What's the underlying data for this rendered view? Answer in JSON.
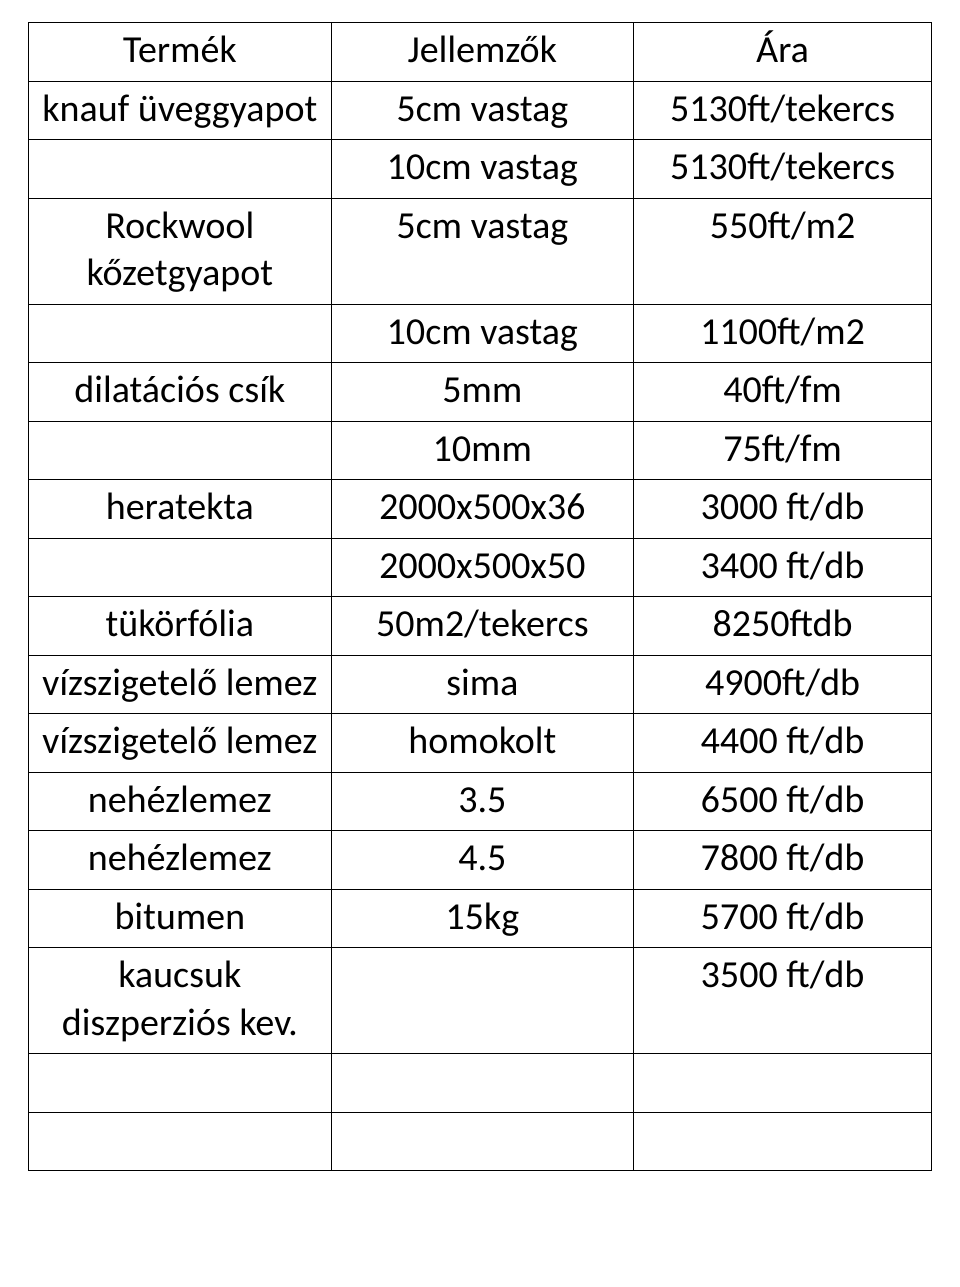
{
  "table": {
    "columns": [
      "Termék",
      "Jellemzők",
      "Ára"
    ],
    "rows": [
      [
        "knauf üveggyapot",
        "5cm vastag",
        "5130ft/tekercs"
      ],
      [
        "",
        "10cm vastag",
        "5130ft/tekercs"
      ],
      [
        "Rockwool kőzetgyapot",
        "5cm vastag",
        "550ft/m2"
      ],
      [
        "",
        "10cm vastag",
        "1100ft/m2"
      ],
      [
        "dilatációs csík",
        "5mm",
        "40ft/fm"
      ],
      [
        "",
        "10mm",
        "75ft/fm"
      ],
      [
        "heratekta",
        "2000x500x36",
        "3000 ft/db"
      ],
      [
        "",
        "2000x500x50",
        "3400 ft/db"
      ],
      [
        "tükörfólia",
        "50m2/tekercs",
        "8250ftdb"
      ],
      [
        "vízszigetelő lemez",
        "sima",
        "4900ft/db"
      ],
      [
        "vízszigetelő lemez",
        "homokolt",
        "4400 ft/db"
      ],
      [
        "nehézlemez",
        "3.5",
        "6500 ft/db"
      ],
      [
        "nehézlemez",
        "4.5",
        "7800 ft/db"
      ],
      [
        "bitumen",
        "15kg",
        "5700 ft/db"
      ],
      [
        "kaucsuk diszperziós kev.",
        "",
        "3500 ft/db"
      ],
      [
        "",
        "",
        ""
      ],
      [
        "",
        "",
        ""
      ]
    ],
    "border_color": "#000000",
    "background_color": "#ffffff",
    "text_color": "#000000",
    "font_size_pt": 28,
    "col_widths_pct": [
      33.5,
      33.5,
      33
    ]
  }
}
